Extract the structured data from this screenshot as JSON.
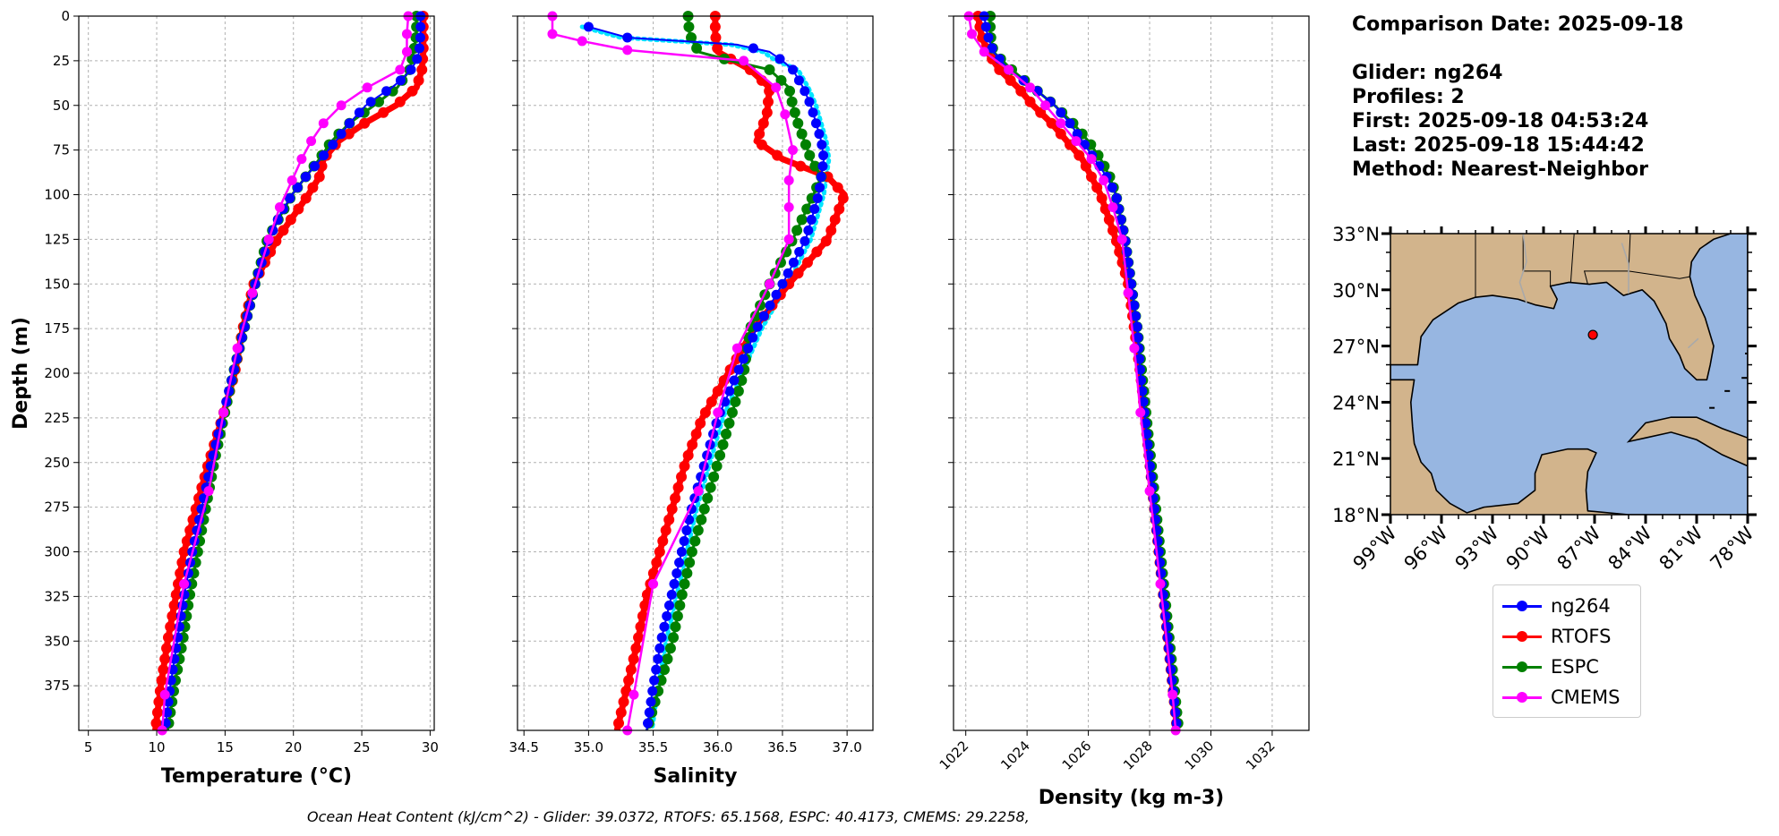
{
  "info": {
    "comparison_date": "Comparison Date: 2025-09-18",
    "glider": "Glider: ng264",
    "profiles": "Profiles: 2",
    "first": "First: 2025-09-18 04:53:24",
    "last": "Last: 2025-09-18 15:44:42",
    "method": "Method: Nearest-Neighbor"
  },
  "footer": "Ocean Heat Content (kJ/cm^2) - Glider: 39.0372,  RTOFS: 65.1568,  ESPC: 40.4173,  CMEMS: 29.2258,",
  "colors": {
    "ng264": "#0000ff",
    "RTOFS": "#ff0000",
    "ESPC": "#008000",
    "CMEMS": "#ff00ff",
    "glider_trace": "#00e5ff",
    "land": "#d2b48c",
    "ocean": "#97b6e1",
    "grid": "#b0b0b0"
  },
  "legend": [
    {
      "name": "ng264",
      "color": "#0000ff"
    },
    {
      "name": "RTOFS",
      "color": "#ff0000"
    },
    {
      "name": "ESPC",
      "color": "#008000"
    },
    {
      "name": "CMEMS",
      "color": "#ff00ff"
    }
  ],
  "chart_data": [
    {
      "type": "line",
      "xlabel": "Temperature ($^oC$)",
      "xlabel_display": "Temperature (°C)",
      "ylabel": "Depth (m)",
      "xlim": [
        4.3,
        30.3
      ],
      "ylim": [
        400,
        0
      ],
      "xticks": [
        5,
        10,
        15,
        20,
        25,
        30
      ],
      "yticks": [
        0,
        25,
        50,
        75,
        100,
        125,
        150,
        175,
        200,
        225,
        250,
        275,
        300,
        325,
        350,
        375
      ],
      "grid": true,
      "series": [
        {
          "name": "ng264",
          "depth": [
            0,
            10,
            20,
            25,
            30,
            35,
            40,
            45,
            50,
            60,
            70,
            80,
            90,
            100,
            110,
            125,
            150,
            175,
            200,
            225,
            250,
            275,
            300,
            325,
            350,
            375,
            400
          ],
          "values": [
            29.3,
            29.3,
            29.2,
            29.0,
            28.6,
            28.0,
            27.2,
            26.2,
            25.3,
            24.1,
            23.1,
            22.0,
            20.9,
            19.9,
            19.1,
            18.2,
            17.2,
            16.4,
            15.6,
            14.8,
            14.0,
            13.3,
            12.6,
            12.0,
            11.5,
            11.0,
            10.6
          ]
        },
        {
          "name": "RTOFS",
          "depth": [
            0,
            10,
            20,
            30,
            40,
            50,
            60,
            70,
            80,
            90,
            100,
            125,
            150,
            175,
            200,
            225,
            250,
            275,
            300,
            325,
            350,
            375,
            400
          ],
          "values": [
            29.5,
            29.5,
            29.5,
            29.4,
            29.0,
            27.5,
            25.2,
            23.3,
            22.2,
            21.9,
            21.1,
            18.8,
            17.1,
            16.3,
            15.7,
            14.8,
            13.8,
            12.9,
            12.0,
            11.4,
            10.8,
            10.3,
            9.9
          ]
        },
        {
          "name": "ESPC",
          "depth": [
            0,
            10,
            20,
            30,
            40,
            50,
            60,
            70,
            80,
            90,
            100,
            125,
            150,
            175,
            200,
            225,
            250,
            275,
            300,
            325,
            350,
            375,
            400
          ],
          "values": [
            29.0,
            29.0,
            28.8,
            28.5,
            27.6,
            25.9,
            24.1,
            22.8,
            21.9,
            20.9,
            19.9,
            18.1,
            17.2,
            16.4,
            15.6,
            14.9,
            14.2,
            13.6,
            13.0,
            12.4,
            11.9,
            11.3,
            10.8
          ]
        },
        {
          "name": "CMEMS",
          "depth": [
            0,
            10,
            20,
            30,
            40,
            50,
            60,
            70,
            80,
            92,
            107,
            125,
            155,
            186,
            222,
            266,
            318,
            380,
            400
          ],
          "values": [
            28.4,
            28.3,
            28.3,
            27.8,
            25.4,
            23.5,
            22.2,
            21.3,
            20.6,
            19.9,
            19.0,
            18.2,
            17.0,
            15.9,
            14.9,
            13.8,
            12.0,
            10.6,
            10.4
          ]
        }
      ]
    },
    {
      "type": "line",
      "xlabel": "Salinity",
      "ylabel": "",
      "xlim": [
        34.45,
        37.2
      ],
      "ylim": [
        400,
        0
      ],
      "xticks": [
        34.5,
        35.0,
        35.5,
        36.0,
        36.5,
        37.0
      ],
      "xtick_labels": [
        "34.5",
        "35.0",
        "35.5",
        "36.0",
        "36.5",
        "37.0"
      ],
      "grid": true,
      "series": [
        {
          "name": "ng264",
          "depth": [
            6,
            12,
            16,
            20,
            25,
            30,
            40,
            50,
            60,
            70,
            80,
            90,
            100,
            110,
            125,
            150,
            175,
            200,
            225,
            250,
            275,
            300,
            325,
            350,
            375,
            400
          ],
          "values": [
            35.0,
            35.3,
            36.15,
            36.4,
            36.5,
            36.58,
            36.66,
            36.72,
            36.76,
            36.8,
            36.82,
            36.8,
            36.78,
            36.74,
            36.68,
            36.5,
            36.3,
            36.15,
            36.0,
            35.9,
            35.8,
            35.72,
            35.64,
            35.56,
            35.5,
            35.45
          ]
        },
        {
          "name": "RTOFS",
          "depth": [
            0,
            10,
            20,
            30,
            40,
            55,
            70,
            80,
            90,
            100,
            125,
            150,
            175,
            200,
            225,
            250,
            275,
            300,
            325,
            350,
            375,
            400
          ],
          "values": [
            35.98,
            35.98,
            36.0,
            36.25,
            36.4,
            36.38,
            36.3,
            36.5,
            36.85,
            36.98,
            36.85,
            36.55,
            36.28,
            36.08,
            35.88,
            35.75,
            35.65,
            35.55,
            35.45,
            35.38,
            35.3,
            35.22
          ]
        },
        {
          "name": "ESPC",
          "depth": [
            0,
            10,
            20,
            25,
            30,
            40,
            50,
            60,
            70,
            80,
            90,
            100,
            125,
            150,
            175,
            200,
            225,
            250,
            275,
            300,
            325,
            350,
            375,
            400
          ],
          "values": [
            35.77,
            35.78,
            35.85,
            36.1,
            36.4,
            36.55,
            36.58,
            36.62,
            36.67,
            36.72,
            36.8,
            36.74,
            36.58,
            36.4,
            36.25,
            36.2,
            36.1,
            36.0,
            35.9,
            35.8,
            35.72,
            35.65,
            35.55,
            35.45
          ]
        },
        {
          "name": "CMEMS",
          "depth": [
            0,
            10,
            14,
            19,
            25,
            40,
            55,
            75,
            92,
            107,
            125,
            150,
            186,
            222,
            266,
            318,
            380,
            400
          ],
          "values": [
            34.72,
            34.72,
            34.95,
            35.3,
            36.2,
            36.45,
            36.52,
            36.58,
            36.55,
            36.55,
            36.55,
            36.4,
            36.15,
            36.0,
            35.85,
            35.5,
            35.35,
            35.3
          ]
        }
      ]
    },
    {
      "type": "line",
      "xlabel": "Density (kg m-3)",
      "ylabel": "",
      "xlim": [
        1021.6,
        1033.2
      ],
      "ylim": [
        400,
        0
      ],
      "xticks": [
        1022,
        1024,
        1026,
        1028,
        1030,
        1032
      ],
      "grid": true,
      "series": [
        {
          "name": "ng264",
          "depth": [
            0,
            10,
            20,
            30,
            40,
            50,
            60,
            70,
            80,
            90,
            100,
            125,
            150,
            175,
            200,
            225,
            250,
            275,
            300,
            325,
            350,
            375,
            400
          ],
          "values": [
            1022.6,
            1022.7,
            1022.9,
            1023.4,
            1024.2,
            1024.9,
            1025.4,
            1025.8,
            1026.2,
            1026.6,
            1026.9,
            1027.2,
            1027.4,
            1027.6,
            1027.7,
            1027.85,
            1028.0,
            1028.15,
            1028.3,
            1028.45,
            1028.6,
            1028.75,
            1028.9
          ]
        },
        {
          "name": "RTOFS",
          "depth": [
            0,
            10,
            20,
            30,
            40,
            50,
            60,
            70,
            80,
            90,
            100,
            125,
            150,
            175,
            200,
            225,
            250,
            275,
            300,
            325,
            350,
            375,
            400
          ],
          "values": [
            1022.4,
            1022.5,
            1022.7,
            1023.1,
            1023.7,
            1024.2,
            1024.8,
            1025.3,
            1025.8,
            1026.1,
            1026.4,
            1026.9,
            1027.3,
            1027.5,
            1027.7,
            1027.85,
            1028.0,
            1028.15,
            1028.3,
            1028.45,
            1028.6,
            1028.75,
            1028.9
          ]
        },
        {
          "name": "ESPC",
          "depth": [
            0,
            10,
            20,
            30,
            40,
            50,
            60,
            70,
            80,
            90,
            100,
            125,
            150,
            175,
            200,
            225,
            250,
            275,
            300,
            325,
            350,
            375,
            400
          ],
          "values": [
            1022.8,
            1022.8,
            1022.9,
            1023.5,
            1024.2,
            1024.9,
            1025.5,
            1026.0,
            1026.4,
            1026.7,
            1026.9,
            1027.2,
            1027.4,
            1027.6,
            1027.75,
            1027.9,
            1028.05,
            1028.2,
            1028.35,
            1028.5,
            1028.65,
            1028.8,
            1028.95
          ]
        },
        {
          "name": "CMEMS",
          "depth": [
            0,
            10,
            20,
            30,
            40,
            50,
            60,
            70,
            80,
            92,
            107,
            125,
            155,
            186,
            222,
            266,
            318,
            380,
            400
          ],
          "values": [
            1022.1,
            1022.2,
            1022.6,
            1023.4,
            1024.1,
            1024.6,
            1025.1,
            1025.6,
            1026.1,
            1026.5,
            1026.8,
            1027.1,
            1027.3,
            1027.5,
            1027.7,
            1028.0,
            1028.35,
            1028.75,
            1028.85
          ]
        }
      ]
    }
  ],
  "map": {
    "lat_ticks": [
      "33°N",
      "30°N",
      "27°N",
      "24°N",
      "21°N",
      "18°N"
    ],
    "lon_ticks": [
      "99°W",
      "96°W",
      "93°W",
      "90°W",
      "87°W",
      "84°W",
      "81°W",
      "78°W"
    ],
    "lat_range": [
      18,
      33
    ],
    "lon_range": [
      -99,
      -78
    ],
    "glider_position": {
      "lon": -87.1,
      "lat": 27.6
    }
  }
}
